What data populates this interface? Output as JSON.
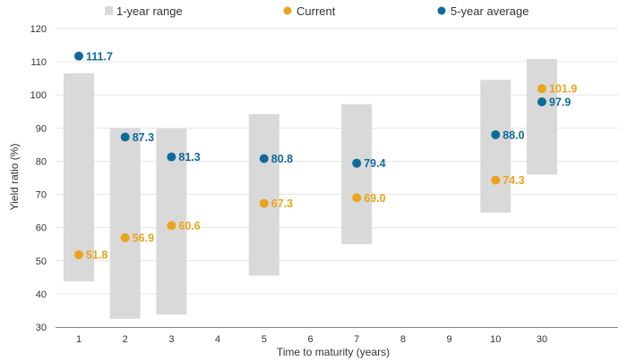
{
  "chart_data": {
    "type": "range-dot",
    "xlabel": "Time to maturity (years)",
    "ylabel": "Yield ratio (%)",
    "ylim": [
      30,
      120
    ],
    "y_ticks": [
      30,
      40,
      50,
      60,
      70,
      80,
      90,
      100,
      110,
      120
    ],
    "x_ticks": [
      "1",
      "2",
      "3",
      "4",
      "5",
      "6",
      "7",
      "8",
      "9",
      "10",
      "30"
    ],
    "grid": "horizontal",
    "legend_position": "top",
    "legend": [
      {
        "key": "range",
        "label": "1-year range",
        "color": "#d9d9d9"
      },
      {
        "key": "current",
        "label": "Current",
        "color": "#eaa41b"
      },
      {
        "key": "avg5",
        "label": "5-year average",
        "color": "#0e6b99"
      }
    ],
    "points": [
      {
        "maturity": "1",
        "range_low": 43.8,
        "range_high": 106.5,
        "current": 51.8,
        "avg5": 111.7,
        "current_label": "51.8",
        "avg5_label": "111.7"
      },
      {
        "maturity": "2",
        "range_low": 32.5,
        "range_high": 90.0,
        "current": 56.9,
        "avg5": 87.3,
        "current_label": "56.9",
        "avg5_label": "87.3"
      },
      {
        "maturity": "3",
        "range_low": 33.8,
        "range_high": 89.8,
        "current": 60.6,
        "avg5": 81.3,
        "current_label": "60.6",
        "avg5_label": "81.3"
      },
      {
        "maturity": "5",
        "range_low": 45.5,
        "range_high": 94.2,
        "current": 67.3,
        "avg5": 80.8,
        "current_label": "67.3",
        "avg5_label": "80.8"
      },
      {
        "maturity": "7",
        "range_low": 55.0,
        "range_high": 97.2,
        "current": 69.0,
        "avg5": 79.4,
        "current_label": "69.0",
        "avg5_label": "79.4"
      },
      {
        "maturity": "10",
        "range_low": 64.5,
        "range_high": 104.5,
        "current": 74.3,
        "avg5": 88.0,
        "current_label": "74.3",
        "avg5_label": "88.0"
      },
      {
        "maturity": "30",
        "range_low": 76.0,
        "range_high": 110.8,
        "current": 101.9,
        "avg5": 97.9,
        "current_label": "101.9",
        "avg5_label": "97.9"
      }
    ]
  }
}
